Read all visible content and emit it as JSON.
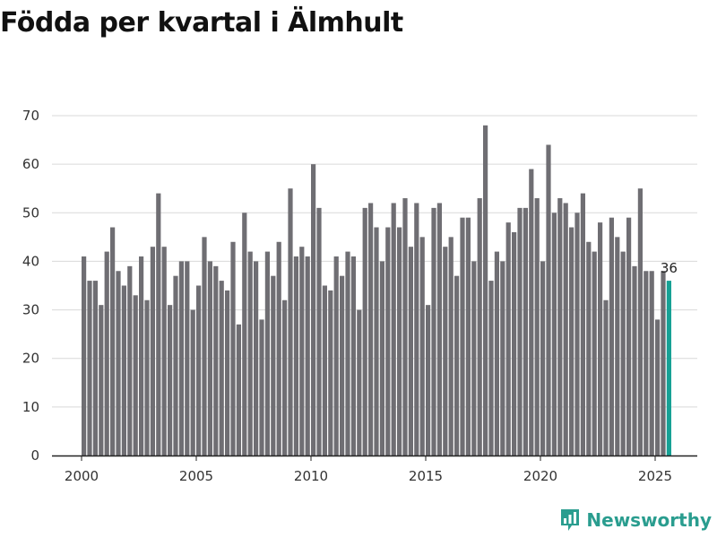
{
  "header": {
    "title": "Födda per kvartal i Älmhult"
  },
  "brand": {
    "name": "Newsworthy",
    "icon": "bar-chart-logo-icon"
  },
  "colors": {
    "bar": "#6f6e73",
    "highlight": "#16a195",
    "grid": "#d9d9d9",
    "axis": "#222222",
    "brand": "#2a9d8f"
  },
  "chart_data": {
    "type": "bar",
    "title": "Födda per kvartal i Älmhult",
    "xlabel": "",
    "ylabel": "",
    "ylim": [
      0,
      70
    ],
    "yticks": [
      0,
      10,
      20,
      30,
      40,
      50,
      60,
      70
    ],
    "start": "2000Q1",
    "xticks": [
      {
        "label": "2000",
        "year": 2000
      },
      {
        "label": "2005",
        "year": 2005
      },
      {
        "label": "2010",
        "year": 2010
      },
      {
        "label": "2015",
        "year": 2015
      },
      {
        "label": "2020",
        "year": 2020
      },
      {
        "label": "2025",
        "year": 2025
      }
    ],
    "values": [
      41,
      36,
      36,
      31,
      42,
      47,
      38,
      35,
      39,
      33,
      41,
      32,
      43,
      54,
      43,
      31,
      37,
      40,
      40,
      30,
      35,
      45,
      40,
      39,
      36,
      34,
      44,
      27,
      50,
      42,
      40,
      28,
      42,
      37,
      44,
      32,
      55,
      41,
      43,
      41,
      60,
      51,
      35,
      34,
      41,
      37,
      42,
      41,
      30,
      51,
      52,
      47,
      40,
      47,
      52,
      47,
      53,
      43,
      52,
      45,
      31,
      51,
      52,
      43,
      45,
      37,
      49,
      49,
      40,
      53,
      68,
      36,
      42,
      40,
      48,
      46,
      51,
      51,
      59,
      53,
      40,
      64,
      50,
      53,
      52,
      47,
      50,
      54,
      44,
      42,
      48,
      32,
      49,
      45,
      42,
      49,
      39,
      55,
      38,
      38,
      28,
      38,
      36
    ],
    "highlight_last": true,
    "highlight_label": "36",
    "grid": true
  }
}
